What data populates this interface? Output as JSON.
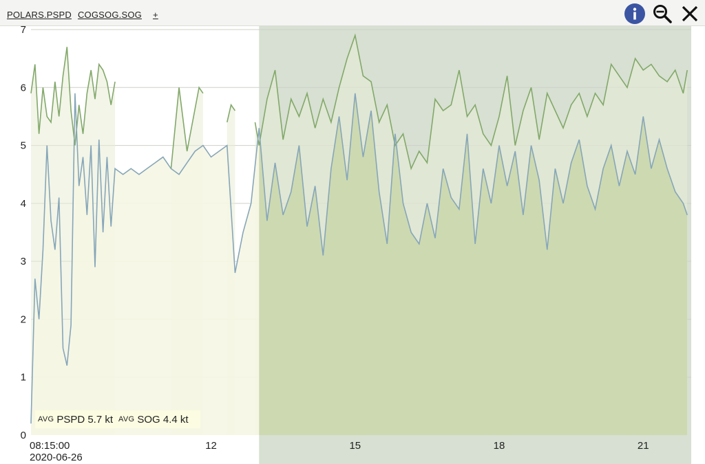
{
  "tabs": [
    "POLARS.PSPD",
    "COGSOG.SOG",
    "+"
  ],
  "icons": [
    "info-icon",
    "zoom-icon",
    "close-icon"
  ],
  "colors": {
    "pspd_line": "#82a86a",
    "sog_line": "#86a6b8",
    "fill_early": "#f6f6e4",
    "fill_late": "#d9e1c6",
    "selection": "#c9d6c3",
    "info_blue": "#3b55a3"
  },
  "stats": {
    "avg_label": "AVG",
    "pspd": "PSPD 5.7 kt",
    "sog": "SOG 4.4 kt"
  },
  "chart_data": {
    "type": "area",
    "title": "",
    "xlabel": "",
    "ylabel": "",
    "ylim": [
      0,
      7
    ],
    "yticks": [
      "0",
      "1",
      "2",
      "3",
      "4",
      "5",
      "6",
      "7"
    ],
    "xlim": [
      "08:15",
      "22:00"
    ],
    "x_tick_labels": [
      "08:15:00",
      "12",
      "15",
      "18",
      "21"
    ],
    "x_date_label": "2020-06-26",
    "grid": "horizontal",
    "selection_x_range": [
      "13:00",
      "22:00"
    ],
    "series": [
      {
        "name": "PSPD",
        "gaps_after": [
          "10:00",
          "11:50",
          "12:30"
        ],
        "times": [
          "08:15",
          "08:20",
          "08:25",
          "08:30",
          "08:35",
          "08:40",
          "08:45",
          "08:50",
          "08:55",
          "09:00",
          "09:05",
          "09:10",
          "09:15",
          "09:20",
          "09:25",
          "09:30",
          "09:35",
          "09:40",
          "09:45",
          "09:50",
          "09:55",
          "10:00",
          "11:10",
          "11:15",
          "11:20",
          "11:30",
          "11:45",
          "11:50",
          "12:20",
          "12:25",
          "12:30",
          "12:55",
          "13:00",
          "13:10",
          "13:20",
          "13:30",
          "13:40",
          "13:50",
          "14:00",
          "14:10",
          "14:20",
          "14:30",
          "14:40",
          "14:50",
          "15:00",
          "15:10",
          "15:20",
          "15:30",
          "15:40",
          "15:50",
          "16:00",
          "16:10",
          "16:20",
          "16:30",
          "16:40",
          "16:50",
          "17:00",
          "17:10",
          "17:20",
          "17:30",
          "17:40",
          "17:50",
          "18:00",
          "18:10",
          "18:20",
          "18:30",
          "18:40",
          "18:50",
          "19:00",
          "19:10",
          "19:20",
          "19:30",
          "19:40",
          "19:50",
          "20:00",
          "20:10",
          "20:20",
          "20:30",
          "20:40",
          "20:50",
          "21:00",
          "21:10",
          "21:20",
          "21:30",
          "21:40",
          "21:50",
          "21:55"
        ],
        "values": [
          5.9,
          6.4,
          5.2,
          6.0,
          5.5,
          5.4,
          6.1,
          5.5,
          6.2,
          6.7,
          5.6,
          5.0,
          5.7,
          5.2,
          5.9,
          6.3,
          5.8,
          6.4,
          6.3,
          6.1,
          5.7,
          6.1,
          4.6,
          5.3,
          6.0,
          4.9,
          6.0,
          5.9,
          5.4,
          5.7,
          5.6,
          5.4,
          5.0,
          5.8,
          6.3,
          5.1,
          5.8,
          5.5,
          5.9,
          5.3,
          5.8,
          5.4,
          6.0,
          6.5,
          6.9,
          6.2,
          6.1,
          5.4,
          5.7,
          5.0,
          5.2,
          4.6,
          4.9,
          4.7,
          5.8,
          5.6,
          5.7,
          6.3,
          5.5,
          5.7,
          5.2,
          5.0,
          5.5,
          6.2,
          5.0,
          5.6,
          6.0,
          5.1,
          5.9,
          5.6,
          5.3,
          5.7,
          5.9,
          5.5,
          5.9,
          5.7,
          6.4,
          6.2,
          6.0,
          6.5,
          6.3,
          6.4,
          6.2,
          6.1,
          6.3,
          5.9,
          6.3
        ]
      },
      {
        "name": "SOG",
        "gaps_after": [],
        "times": [
          "08:15",
          "08:20",
          "08:25",
          "08:30",
          "08:35",
          "08:40",
          "08:45",
          "08:50",
          "08:55",
          "09:00",
          "09:05",
          "09:10",
          "09:15",
          "09:20",
          "09:25",
          "09:30",
          "09:35",
          "09:40",
          "09:45",
          "09:50",
          "09:55",
          "10:00",
          "10:10",
          "10:20",
          "10:30",
          "10:40",
          "10:50",
          "11:00",
          "11:10",
          "11:20",
          "11:30",
          "11:40",
          "11:50",
          "12:00",
          "12:10",
          "12:20",
          "12:30",
          "12:40",
          "12:50",
          "13:00",
          "13:10",
          "13:20",
          "13:30",
          "13:40",
          "13:50",
          "14:00",
          "14:10",
          "14:20",
          "14:30",
          "14:40",
          "14:50",
          "15:00",
          "15:10",
          "15:20",
          "15:30",
          "15:40",
          "15:50",
          "16:00",
          "16:10",
          "16:20",
          "16:30",
          "16:40",
          "16:50",
          "17:00",
          "17:10",
          "17:20",
          "17:30",
          "17:40",
          "17:50",
          "18:00",
          "18:10",
          "18:20",
          "18:30",
          "18:40",
          "18:50",
          "19:00",
          "19:10",
          "19:20",
          "19:30",
          "19:40",
          "19:50",
          "20:00",
          "20:10",
          "20:20",
          "20:30",
          "20:40",
          "20:50",
          "21:00",
          "21:10",
          "21:20",
          "21:30",
          "21:40",
          "21:50",
          "21:55"
        ],
        "values": [
          0.2,
          2.7,
          2.0,
          3.2,
          5.0,
          3.7,
          3.2,
          4.1,
          1.5,
          1.2,
          1.9,
          5.9,
          4.3,
          4.8,
          3.8,
          5.0,
          2.9,
          5.1,
          3.5,
          4.8,
          3.6,
          4.6,
          4.5,
          4.6,
          4.5,
          4.6,
          4.7,
          4.8,
          4.6,
          4.5,
          4.7,
          4.9,
          5.0,
          4.8,
          4.9,
          5.0,
          2.8,
          3.5,
          4.0,
          5.3,
          3.7,
          4.7,
          3.8,
          4.2,
          5.0,
          3.6,
          4.3,
          3.1,
          4.6,
          5.5,
          4.4,
          5.9,
          4.8,
          5.6,
          4.2,
          3.3,
          5.2,
          4.0,
          3.5,
          3.3,
          4.0,
          3.4,
          4.6,
          4.1,
          3.9,
          5.2,
          3.3,
          4.6,
          4.0,
          5.0,
          4.3,
          4.9,
          3.8,
          5.0,
          4.4,
          3.2,
          4.6,
          4.0,
          4.7,
          5.1,
          4.3,
          3.9,
          4.6,
          5.0,
          4.3,
          4.9,
          4.5,
          5.5,
          4.6,
          5.1,
          4.6,
          4.2,
          4.0,
          3.8
        ]
      }
    ]
  }
}
